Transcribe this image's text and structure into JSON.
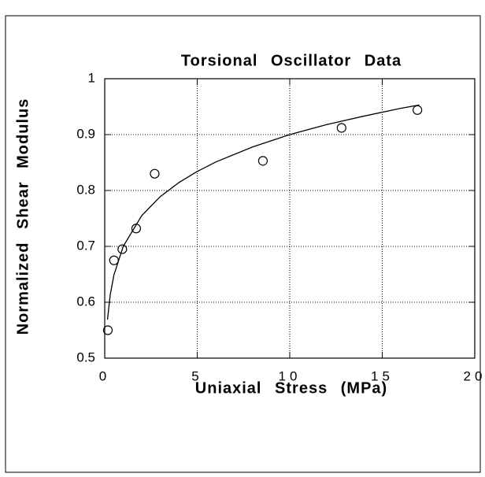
{
  "chart_data": {
    "type": "scatter",
    "title": "Torsional Oscillator Data",
    "x_label": "Uniaxial Stress (MPa)",
    "y_label": "Normalized Shear Modulus",
    "series": [
      {
        "type": "scatter",
        "color": "#000000",
        "x": [
          0.17,
          0.5,
          0.95,
          1.7,
          2.7,
          8.55,
          12.8,
          16.9
        ],
        "values": [
          0.55,
          0.675,
          0.695,
          0.732,
          0.83,
          0.853,
          0.912,
          0.944
        ]
      },
      {
        "type": "line",
        "color": "#000000",
        "x": [
          0.15,
          0.3,
          0.5,
          1,
          2,
          3,
          4,
          5,
          6,
          8,
          10,
          12,
          14,
          16,
          17
        ],
        "values": [
          0.569,
          0.614,
          0.649,
          0.7,
          0.755,
          0.789,
          0.814,
          0.834,
          0.851,
          0.878,
          0.9,
          0.918,
          0.933,
          0.947,
          0.953
        ]
      }
    ],
    "xlim": [
      0,
      20
    ],
    "xticks": [
      0,
      5,
      10,
      15,
      20
    ],
    "ylim": [
      0.5,
      1
    ],
    "yticks": [
      0.5,
      0.6,
      0.7,
      0.8,
      0.9,
      1
    ],
    "grid": true
  }
}
